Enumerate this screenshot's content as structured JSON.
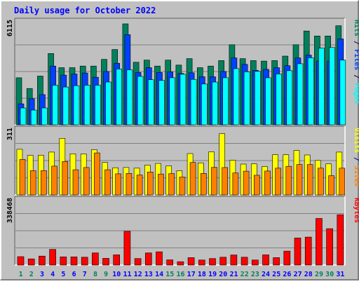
{
  "colors": {
    "background": "#c0c0c0",
    "title": "#0000ff",
    "hits": "#00805c",
    "files": "#0040ff",
    "pages": "#00ffff",
    "visits": "#ffff00",
    "sites": "#ff8000",
    "kbytes": "#ff0000",
    "weekend_day": "#00805c",
    "weekday": "#0000ff"
  },
  "chart_data": {
    "type": "bar",
    "title": "Daily usage for October 2022",
    "categories": [
      "1",
      "2",
      "3",
      "4",
      "5",
      "6",
      "7",
      "8",
      "9",
      "10",
      "11",
      "12",
      "13",
      "14",
      "15",
      "16",
      "17",
      "18",
      "19",
      "20",
      "21",
      "22",
      "23",
      "24",
      "25",
      "26",
      "27",
      "28",
      "29",
      "30",
      "31"
    ],
    "weekend_days": [
      "1",
      "2",
      "8",
      "9",
      "15",
      "16",
      "22",
      "23",
      "29",
      "30"
    ],
    "panels": [
      {
        "id": "hits-files-pages",
        "ymax_label": "6115",
        "ylim": [
          0,
          6115
        ],
        "legend": [
          {
            "text": "Pages",
            "color": "#00ffff"
          },
          {
            "text": " / ",
            "color": "#000080"
          },
          {
            "text": "Files",
            "color": "#0040ff"
          },
          {
            "text": " / ",
            "color": "#000080"
          },
          {
            "text": "Hits",
            "color": "#00805c"
          }
        ],
        "series": [
          {
            "name": "Hits",
            "color": "#00805c",
            "values": [
              2850,
              2200,
              2950,
              4320,
              3460,
              3460,
              3560,
              3560,
              3960,
              4560,
              6115,
              3790,
              3920,
              3560,
              3920,
              3620,
              4010,
              3460,
              3560,
              3890,
              4850,
              4010,
              3890,
              3860,
              3890,
              4160,
              4850,
              5680,
              5380,
              5380,
              6000
            ]
          },
          {
            "name": "Files",
            "color": "#0040ff",
            "values": [
              1270,
              1580,
              1830,
              3560,
              3010,
              3080,
              3140,
              2880,
              3230,
              3730,
              5460,
              3170,
              3460,
              3170,
              3200,
              3110,
              3150,
              2910,
              2910,
              3230,
              4050,
              3660,
              3300,
              3360,
              3460,
              3580,
              4050,
              4220,
              3860,
              3860,
              5200
            ]
          },
          {
            "name": "Pages",
            "color": "#00ffff",
            "values": [
              1020,
              890,
              1020,
              2400,
              2290,
              2370,
              2400,
              2400,
              2590,
              3380,
              3330,
              2930,
              2730,
              2690,
              2850,
              3060,
              2750,
              2470,
              2590,
              2850,
              3400,
              3210,
              3240,
              2850,
              3080,
              3280,
              3700,
              4060,
              4640,
              4680,
              3920
            ]
          }
        ]
      },
      {
        "id": "visits-sites",
        "ymax_label": "311",
        "ylim": [
          0,
          311
        ],
        "legend": [
          {
            "text": "Sites",
            "color": "#ff8000"
          },
          {
            "text": " / ",
            "color": "#000080"
          },
          {
            "text": "Visits",
            "color": "#ffff00"
          }
        ],
        "series": [
          {
            "name": "Visits",
            "color": "#ffff00",
            "values": [
              225,
              195,
              196,
              211,
              279,
              203,
              202,
              223,
              160,
              134,
              135,
              132,
              147,
              155,
              143,
              119,
              204,
              158,
              212,
              302,
              171,
              152,
              153,
              140,
              198,
              198,
              219,
              197,
              170,
              153,
              211
            ]
          },
          {
            "name": "Sites",
            "color": "#ff8000",
            "values": [
              175,
              120,
              120,
              142,
              165,
              124,
              135,
              207,
              124,
              104,
              106,
              98,
              113,
              103,
              105,
              88,
              160,
              106,
              136,
              135,
              108,
              117,
              97,
              118,
              132,
              141,
              150,
              150,
              132,
              95,
              132
            ]
          }
        ]
      },
      {
        "id": "kbytes",
        "ymax_label": "338468",
        "ylim": [
          0,
          338468
        ],
        "legend": [
          {
            "text": "KBytes",
            "color": "#ff0000"
          }
        ],
        "series": [
          {
            "name": "KBytes",
            "color": "#ff0000",
            "values": [
              45000,
              33000,
              48000,
              84000,
              44000,
              44000,
              42000,
              65000,
              36000,
              55000,
              181000,
              35000,
              65000,
              71000,
              28000,
              18000,
              40000,
              27000,
              35000,
              42000,
              54000,
              42000,
              27000,
              55000,
              40000,
              75000,
              145000,
              150000,
              250000,
              195000,
              270000
            ]
          }
        ]
      }
    ]
  }
}
